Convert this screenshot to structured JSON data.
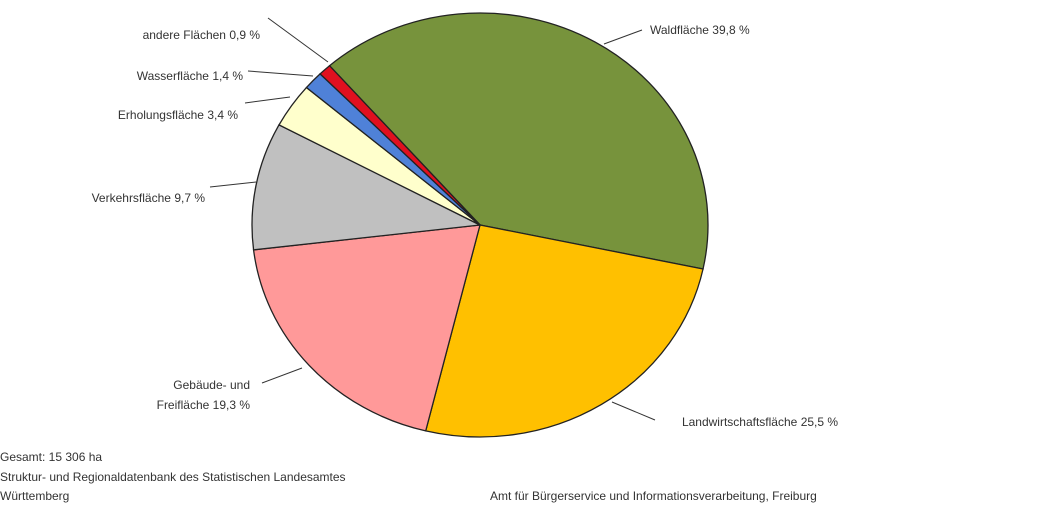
{
  "chart_data": {
    "type": "pie",
    "categories": [
      "Waldfläche",
      "Landwirtschaftsfläche",
      "Gebäude- und Freifläche",
      "Verkehrsfläche",
      "Erholungsfläche",
      "Wasserfläche",
      "andere Flächen"
    ],
    "values": [
      39.8,
      25.5,
      19.3,
      9.7,
      3.4,
      1.4,
      0.9
    ],
    "value_labels": [
      "39,8 %",
      "25,5 %",
      "19,3 %",
      "9,7 %",
      "3,4 %",
      "1,4 %",
      "0,9 %"
    ],
    "colors": [
      "#77933c",
      "#ffc000",
      "#ff9999",
      "#c0c0c0",
      "#ffffcc",
      "#4f81d8",
      "#e0101f"
    ],
    "total_note": "Gesamt: 15 306 ha",
    "source_line1": "Struktur- und Regionaldatenbank des Statistischen Landesamtes",
    "source_line2": "Württemberg",
    "credit": "Amt für Bürgerservice und Informationsverarbeitung, Freiburg"
  }
}
